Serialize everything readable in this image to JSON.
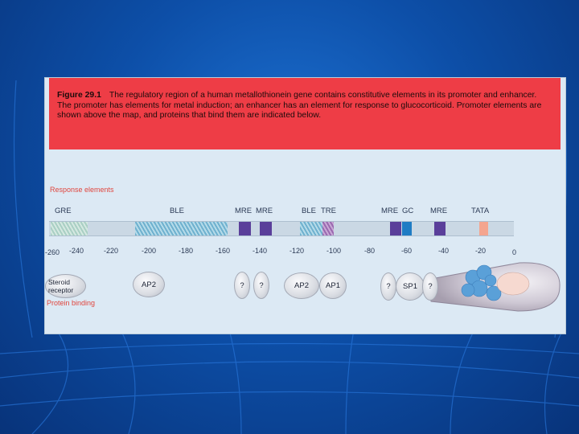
{
  "caption": {
    "figure_label": "Figure 29.1",
    "text": "The regulatory region of a human metallothionein gene contains constitutive elements in its promoter and enhancer. The promoter has elements for metal induction; an enhancer has an element for response to glucocorticoid. Promoter elements are shown above the map, and proteins that bind them are indicated below."
  },
  "labels": {
    "response_elements": "Response elements",
    "protein_binding": "Protein binding"
  },
  "elements": [
    "GRE",
    "BLE",
    "MRE",
    "MRE",
    "BLE",
    "TRE",
    "MRE",
    "GC",
    "MRE",
    "TATA"
  ],
  "ticks": [
    "-260",
    "-240",
    "-220",
    "-200",
    "-180",
    "-160",
    "-140",
    "-120",
    "-100",
    "-80",
    "-60",
    "-40",
    "-20",
    "0"
  ],
  "proteins": [
    "Steroid receptor",
    "AP2",
    "?",
    "?",
    "AP2",
    "AP1",
    "?",
    "SP1",
    "?"
  ],
  "colors": {
    "caption_bg": "#ee3d46",
    "figure_bg": "#dce9f4",
    "mre": "#5a3f9a",
    "gc": "#1f7cc4",
    "tata": "#f4a58f",
    "polymerase": "#5aa0d8"
  }
}
